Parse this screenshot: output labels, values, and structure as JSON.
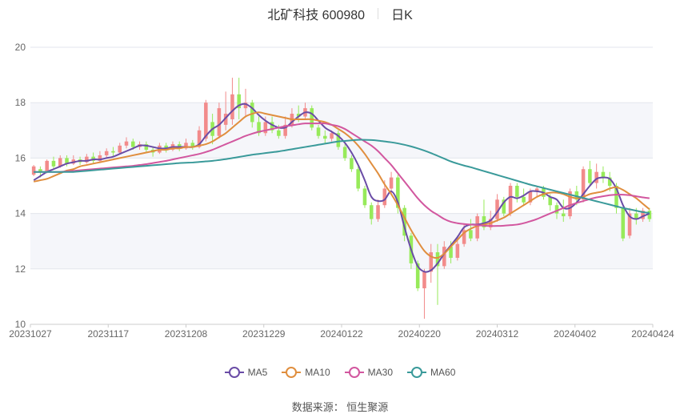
{
  "header": {
    "title": "北矿科技 600980",
    "period": "日K"
  },
  "source": "数据来源： 恒生聚源",
  "colors": {
    "up": "#f28b8b",
    "down": "#97ea5a",
    "ma5": "#6a4ca6",
    "ma10": "#e08e3e",
    "ma30": "#d2579f",
    "ma60": "#3a9a9a"
  },
  "chart_data": {
    "type": "candlestick",
    "title": "北矿科技 600980",
    "period": "日K",
    "x_tick_labels": [
      "20231027",
      "20231117",
      "20231208",
      "20231229",
      "20240122",
      "20240220",
      "20240312",
      "20240402",
      "20240424"
    ],
    "ylim": [
      10,
      20
    ],
    "y_ticks": [
      10,
      12,
      14,
      16,
      18,
      20
    ],
    "grid": true,
    "legend_position": "bottom",
    "series": [
      {
        "name": "MA5",
        "color": "#6a4ca6",
        "values": [
          15.2,
          15.35,
          15.5,
          15.6,
          15.7,
          15.8,
          15.85,
          15.9,
          15.9,
          15.95,
          15.95,
          16.0,
          16.05,
          16.15,
          16.25,
          16.35,
          16.45,
          16.45,
          16.4,
          16.35,
          16.35,
          16.4,
          16.4,
          16.4,
          16.4,
          16.5,
          16.8,
          17.05,
          17.2,
          17.45,
          17.7,
          17.9,
          17.95,
          17.8,
          17.55,
          17.35,
          17.2,
          17.1,
          17.1,
          17.3,
          17.5,
          17.65,
          17.6,
          17.35,
          17.1,
          16.95,
          16.8,
          16.55,
          16.2,
          15.75,
          15.2,
          14.6,
          14.45,
          14.5,
          14.8,
          14.4,
          13.5,
          12.7,
          12.1,
          11.9,
          11.95,
          12.2,
          12.55,
          12.85,
          13.15,
          13.5,
          13.6,
          13.6,
          13.65,
          13.75,
          14.05,
          14.4,
          14.6,
          14.55,
          14.65,
          14.8,
          14.8,
          14.75,
          14.6,
          14.5,
          14.2,
          14.2,
          14.4,
          14.7,
          15.0,
          15.25,
          15.3,
          15.25,
          14.9,
          14.3,
          13.9,
          13.8,
          13.9,
          14.0
        ]
      },
      {
        "name": "MA10",
        "color": "#e08e3e",
        "values": [
          15.15,
          15.2,
          15.25,
          15.35,
          15.45,
          15.55,
          15.6,
          15.7,
          15.75,
          15.8,
          15.85,
          15.9,
          15.95,
          16.0,
          16.05,
          16.1,
          16.15,
          16.2,
          16.25,
          16.3,
          16.3,
          16.35,
          16.35,
          16.4,
          16.4,
          16.45,
          16.5,
          16.6,
          16.75,
          16.9,
          17.1,
          17.3,
          17.5,
          17.6,
          17.65,
          17.6,
          17.55,
          17.5,
          17.45,
          17.4,
          17.4,
          17.4,
          17.4,
          17.35,
          17.3,
          17.2,
          17.05,
          16.9,
          16.7,
          16.45,
          16.15,
          15.8,
          15.45,
          15.05,
          14.7,
          14.3,
          13.85,
          13.4,
          13.0,
          12.65,
          12.45,
          12.4,
          12.55,
          12.8,
          13.05,
          13.3,
          13.45,
          13.55,
          13.6,
          13.65,
          13.75,
          13.85,
          14.0,
          14.15,
          14.3,
          14.45,
          14.6,
          14.7,
          14.75,
          14.75,
          14.7,
          14.6,
          14.55,
          14.6,
          14.7,
          14.75,
          14.8,
          14.9,
          14.95,
          14.85,
          14.7,
          14.55,
          14.35,
          14.15
        ]
      },
      {
        "name": "MA30",
        "color": "#d2579f",
        "values": [
          15.5,
          15.5,
          15.5,
          15.5,
          15.5,
          15.52,
          15.54,
          15.56,
          15.58,
          15.6,
          15.62,
          15.64,
          15.66,
          15.68,
          15.7,
          15.72,
          15.75,
          15.78,
          15.82,
          15.86,
          15.9,
          15.95,
          16.0,
          16.05,
          16.1,
          16.15,
          16.22,
          16.3,
          16.4,
          16.5,
          16.6,
          16.7,
          16.8,
          16.88,
          16.95,
          17.0,
          17.05,
          17.1,
          17.15,
          17.18,
          17.22,
          17.25,
          17.25,
          17.25,
          17.25,
          17.2,
          17.15,
          17.05,
          16.9,
          16.75,
          16.6,
          16.45,
          16.25,
          16.0,
          15.75,
          15.45,
          15.15,
          14.85,
          14.55,
          14.3,
          14.1,
          13.95,
          13.8,
          13.7,
          13.65,
          13.62,
          13.6,
          13.58,
          13.56,
          13.55,
          13.55,
          13.56,
          13.58,
          13.6,
          13.65,
          13.72,
          13.8,
          13.9,
          14.0,
          14.1,
          14.2,
          14.3,
          14.38,
          14.45,
          14.52,
          14.58,
          14.62,
          14.66,
          14.68,
          14.68,
          14.66,
          14.62,
          14.58,
          14.55
        ]
      },
      {
        "name": "MA60",
        "color": "#3a9a9a",
        "values": [
          15.5,
          15.5,
          15.5,
          15.5,
          15.5,
          15.5,
          15.5,
          15.52,
          15.54,
          15.56,
          15.58,
          15.6,
          15.62,
          15.64,
          15.66,
          15.68,
          15.7,
          15.72,
          15.74,
          15.76,
          15.78,
          15.8,
          15.82,
          15.83,
          15.84,
          15.86,
          15.88,
          15.9,
          15.93,
          15.96,
          16.0,
          16.04,
          16.08,
          16.12,
          16.15,
          16.18,
          16.21,
          16.24,
          16.28,
          16.32,
          16.36,
          16.4,
          16.44,
          16.48,
          16.52,
          16.56,
          16.6,
          16.62,
          16.64,
          16.66,
          16.66,
          16.65,
          16.63,
          16.6,
          16.57,
          16.53,
          16.48,
          16.42,
          16.35,
          16.27,
          16.18,
          16.08,
          15.98,
          15.88,
          15.8,
          15.73,
          15.67,
          15.6,
          15.53,
          15.46,
          15.39,
          15.32,
          15.25,
          15.18,
          15.11,
          15.04,
          14.98,
          14.92,
          14.86,
          14.8,
          14.74,
          14.68,
          14.62,
          14.56,
          14.5,
          14.44,
          14.38,
          14.32,
          14.26,
          14.2,
          14.15,
          14.1,
          14.05,
          14.02
        ]
      }
    ],
    "candles": [
      [
        15.4,
        15.7,
        15.35,
        15.75
      ],
      [
        15.6,
        15.5,
        15.3,
        15.7
      ],
      [
        15.5,
        15.9,
        15.45,
        15.95
      ],
      [
        15.9,
        15.7,
        15.6,
        16.05
      ],
      [
        15.7,
        16.0,
        15.65,
        16.1
      ],
      [
        16.0,
        15.8,
        15.7,
        16.1
      ],
      [
        15.8,
        15.95,
        15.75,
        16.1
      ],
      [
        15.95,
        15.85,
        15.75,
        16.05
      ],
      [
        15.85,
        16.05,
        15.8,
        16.15
      ],
      [
        16.05,
        15.9,
        15.8,
        16.2
      ],
      [
        15.9,
        16.1,
        15.85,
        16.25
      ],
      [
        16.1,
        16.25,
        16.0,
        16.35
      ],
      [
        16.25,
        16.2,
        16.05,
        16.4
      ],
      [
        16.2,
        16.45,
        16.15,
        16.55
      ],
      [
        16.45,
        16.6,
        16.35,
        16.75
      ],
      [
        16.6,
        16.4,
        16.3,
        16.7
      ],
      [
        16.4,
        16.5,
        16.3,
        16.6
      ],
      [
        16.5,
        16.3,
        16.2,
        16.6
      ],
      [
        16.3,
        16.2,
        16.05,
        16.4
      ],
      [
        16.2,
        16.45,
        16.15,
        16.55
      ],
      [
        16.45,
        16.3,
        16.2,
        16.55
      ],
      [
        16.3,
        16.5,
        16.25,
        16.6
      ],
      [
        16.5,
        16.35,
        16.25,
        16.6
      ],
      [
        16.35,
        16.55,
        16.3,
        16.7
      ],
      [
        16.55,
        16.4,
        16.3,
        16.65
      ],
      [
        16.4,
        17.0,
        16.35,
        17.15
      ],
      [
        16.7,
        18.0,
        16.6,
        18.1
      ],
      [
        17.3,
        16.8,
        16.5,
        17.6
      ],
      [
        16.8,
        17.8,
        16.7,
        18.0
      ],
      [
        17.2,
        17.6,
        17.0,
        18.4
      ],
      [
        17.4,
        18.3,
        17.2,
        18.9
      ],
      [
        18.3,
        17.8,
        17.4,
        18.9
      ],
      [
        17.8,
        18.0,
        17.5,
        18.5
      ],
      [
        18.0,
        17.3,
        17.1,
        18.1
      ],
      [
        17.3,
        16.9,
        16.8,
        17.5
      ],
      [
        16.9,
        17.3,
        16.8,
        17.5
      ],
      [
        17.3,
        17.0,
        16.9,
        17.5
      ],
      [
        17.0,
        16.8,
        16.7,
        17.2
      ],
      [
        16.8,
        17.2,
        16.7,
        17.5
      ],
      [
        17.2,
        17.6,
        17.1,
        17.8
      ],
      [
        17.6,
        17.5,
        17.3,
        17.9
      ],
      [
        17.5,
        17.8,
        17.4,
        18.0
      ],
      [
        17.8,
        17.1,
        17.0,
        17.9
      ],
      [
        17.1,
        16.8,
        16.7,
        17.2
      ],
      [
        16.8,
        16.7,
        16.5,
        17.0
      ],
      [
        16.7,
        16.9,
        16.6,
        17.0
      ],
      [
        16.9,
        16.4,
        16.3,
        17.0
      ],
      [
        16.4,
        16.0,
        15.9,
        16.5
      ],
      [
        16.0,
        15.6,
        15.5,
        16.1
      ],
      [
        15.6,
        14.9,
        14.8,
        15.7
      ],
      [
        14.9,
        14.3,
        14.2,
        15.0
      ],
      [
        14.3,
        13.8,
        13.6,
        14.4
      ],
      [
        13.8,
        14.3,
        13.7,
        14.5
      ],
      [
        14.3,
        14.9,
        14.2,
        15.2
      ],
      [
        14.9,
        15.3,
        14.7,
        15.5
      ],
      [
        15.3,
        14.2,
        14.0,
        15.4
      ],
      [
        14.2,
        13.2,
        13.0,
        14.3
      ],
      [
        13.2,
        12.2,
        12.0,
        13.3
      ],
      [
        12.2,
        11.3,
        11.2,
        12.3
      ],
      [
        11.3,
        11.9,
        10.2,
        12.0
      ],
      [
        11.9,
        12.6,
        11.5,
        12.9
      ],
      [
        12.6,
        12.1,
        10.7,
        12.9
      ],
      [
        12.1,
        12.8,
        12.0,
        13.0
      ],
      [
        12.8,
        12.4,
        12.2,
        13.0
      ],
      [
        12.4,
        12.9,
        12.3,
        13.2
      ],
      [
        12.9,
        13.4,
        12.8,
        13.6
      ],
      [
        13.4,
        13.1,
        13.0,
        13.8
      ],
      [
        13.1,
        13.9,
        13.0,
        14.0
      ],
      [
        13.9,
        13.5,
        13.4,
        14.5
      ],
      [
        13.5,
        13.8,
        13.4,
        14.1
      ],
      [
        13.8,
        14.5,
        13.7,
        14.7
      ],
      [
        14.5,
        14.0,
        13.9,
        14.6
      ],
      [
        14.0,
        15.0,
        13.9,
        15.1
      ],
      [
        15.0,
        14.6,
        14.4,
        15.1
      ],
      [
        14.6,
        14.4,
        14.3,
        14.9
      ],
      [
        14.4,
        14.8,
        14.3,
        14.9
      ],
      [
        14.8,
        14.9,
        14.6,
        15.0
      ],
      [
        14.9,
        14.6,
        14.5,
        15.0
      ],
      [
        14.6,
        14.3,
        14.1,
        14.7
      ],
      [
        14.3,
        14.0,
        13.8,
        14.4
      ],
      [
        14.0,
        13.9,
        13.7,
        14.5
      ],
      [
        13.9,
        14.8,
        13.8,
        14.9
      ],
      [
        14.8,
        14.5,
        14.3,
        15.0
      ],
      [
        14.5,
        15.6,
        14.4,
        15.7
      ],
      [
        15.6,
        15.1,
        15.0,
        15.9
      ],
      [
        15.1,
        15.5,
        14.9,
        15.8
      ],
      [
        15.5,
        15.3,
        15.1,
        15.7
      ],
      [
        15.3,
        15.0,
        14.8,
        15.5
      ],
      [
        15.0,
        14.2,
        14.0,
        15.1
      ],
      [
        14.2,
        13.1,
        13.0,
        14.2
      ],
      [
        13.2,
        14.0,
        13.1,
        14.2
      ],
      [
        14.0,
        13.8,
        13.6,
        14.2
      ],
      [
        13.8,
        14.1,
        13.7,
        14.2
      ],
      [
        14.1,
        13.8,
        13.7,
        14.2
      ]
    ]
  }
}
